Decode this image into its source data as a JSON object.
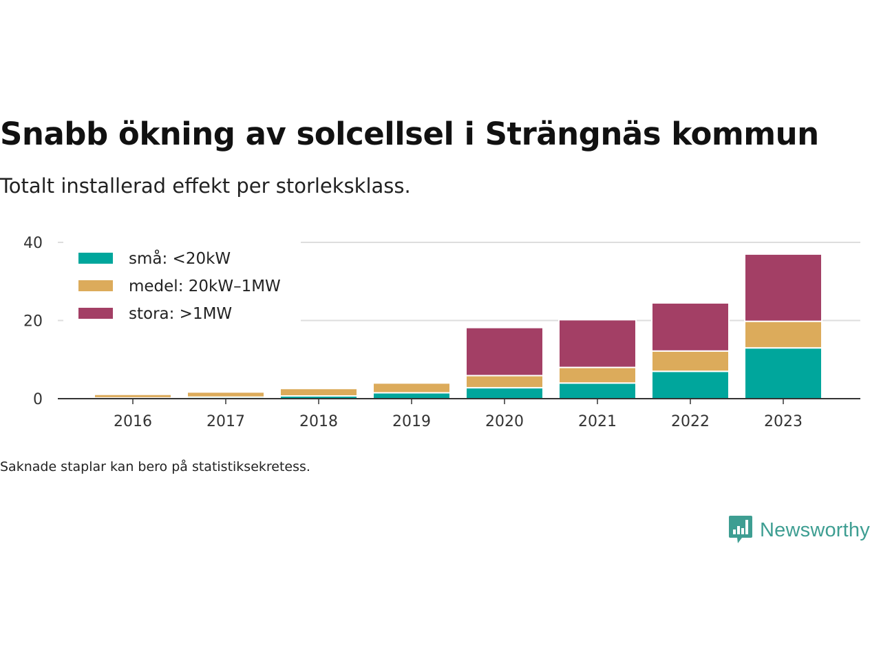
{
  "header": {
    "title": "Snabb ökning av solcellsel i Strängnäs kommun",
    "subtitle": "Totalt installerad effekt per storleksklass."
  },
  "chart_data": {
    "type": "bar",
    "stacked": true,
    "title": "",
    "xlabel": "",
    "ylabel": "",
    "categories": [
      "2016",
      "2017",
      "2018",
      "2019",
      "2020",
      "2021",
      "2022",
      "2023"
    ],
    "series": [
      {
        "name": "små: <20kW",
        "color": "#00a69c",
        "values": [
          0.2,
          0.4,
          0.7,
          1.5,
          2.8,
          4.0,
          7.0,
          13.0
        ]
      },
      {
        "name": "medel: 20kW–1MW",
        "color": "#dcab5b",
        "values": [
          0.9,
          1.3,
          1.9,
          2.5,
          3.1,
          4.0,
          5.2,
          6.8
        ]
      },
      {
        "name": "stora: >1MW",
        "color": "#a33f65",
        "values": [
          0,
          0,
          0,
          0,
          12.3,
          12.2,
          12.3,
          17.2
        ]
      }
    ],
    "ylim": [
      0,
      40
    ],
    "yticks": [
      0,
      20,
      40
    ],
    "grid": true,
    "legend": "top-left"
  },
  "footer": {
    "note": "Saknade staplar kan bero på statistiksekretess.",
    "brand": "Newsworthy"
  },
  "colors": {
    "grid": "#dddddd",
    "axis": "#333333",
    "brand": "#3e9e92"
  }
}
